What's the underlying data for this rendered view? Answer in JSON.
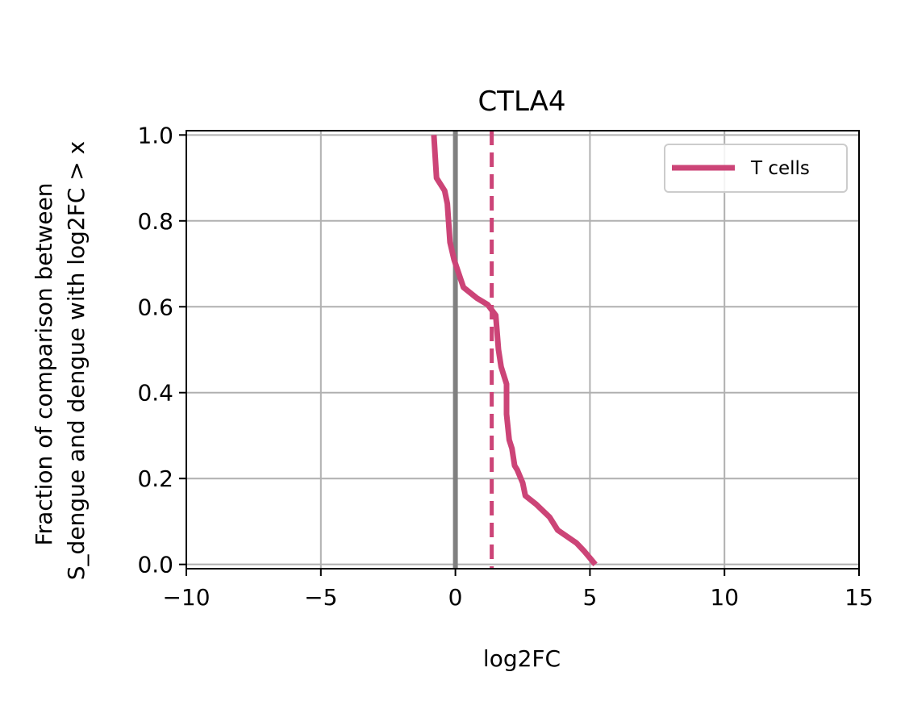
{
  "chart_data": {
    "type": "line",
    "title": "CTLA4",
    "xlabel": "log2FC",
    "ylabel_lines": [
      "Fraction of comparison between",
      "S_dengue and dengue with log2FC > x"
    ],
    "xlim": [
      -10,
      15
    ],
    "ylim": [
      -0.01,
      1.01
    ],
    "xticks": [
      -10,
      -5,
      0,
      5,
      10,
      15
    ],
    "xtick_labels": [
      "−10",
      "−5",
      "0",
      "5",
      "10",
      "15"
    ],
    "yticks": [
      0.0,
      0.2,
      0.4,
      0.6,
      0.8,
      1.0
    ],
    "ytick_labels": [
      "0.0",
      "0.2",
      "0.4",
      "0.6",
      "0.8",
      "1.0"
    ],
    "grid": true,
    "legend_position": "top-right",
    "series": [
      {
        "name": "T cells",
        "color": "#cc4477",
        "x": [
          -0.8,
          -0.7,
          -0.4,
          -0.3,
          -0.2,
          -0.05,
          0.3,
          0.8,
          1.2,
          1.5,
          1.6,
          1.7,
          1.9,
          1.9,
          2.0,
          2.1,
          2.2,
          2.3,
          2.5,
          2.6,
          3.0,
          3.5,
          3.8,
          4.5,
          4.8,
          5.2
        ],
        "y": [
          1.0,
          0.9,
          0.87,
          0.84,
          0.75,
          0.71,
          0.645,
          0.62,
          0.605,
          0.58,
          0.5,
          0.46,
          0.42,
          0.35,
          0.29,
          0.27,
          0.23,
          0.22,
          0.19,
          0.16,
          0.14,
          0.11,
          0.08,
          0.05,
          0.03,
          0.0
        ]
      }
    ],
    "reference_lines": [
      {
        "orientation": "vertical",
        "x": 0,
        "style": "solid",
        "color": "#808080"
      },
      {
        "orientation": "vertical",
        "x": 1.35,
        "style": "dashed",
        "color": "#cc4477"
      }
    ]
  }
}
